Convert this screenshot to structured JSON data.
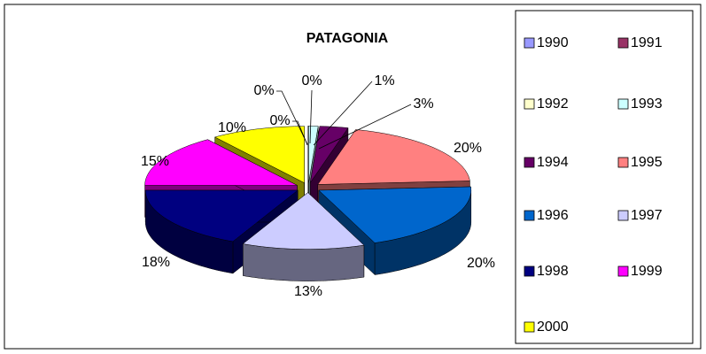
{
  "chart_data": {
    "type": "pie3d",
    "title": "PATAGONIA",
    "categories": [
      "1990",
      "1991",
      "1992",
      "1993",
      "1994",
      "1995",
      "1996",
      "1997",
      "1998",
      "1999",
      "2000"
    ],
    "values": [
      0,
      0,
      0,
      1,
      3,
      20,
      20,
      13,
      18,
      15,
      10
    ],
    "value_labels": [
      "0%",
      "0%",
      "0%",
      "1%",
      "3%",
      "20%",
      "20%",
      "13%",
      "18%",
      "15%",
      "10%"
    ],
    "colors": [
      "#9999ff",
      "#993366",
      "#ffffcc",
      "#ccffff",
      "#660066",
      "#ff8080",
      "#0066cc",
      "#ccccff",
      "#000080",
      "#ff00ff",
      "#ffff00"
    ],
    "legend": "right"
  }
}
